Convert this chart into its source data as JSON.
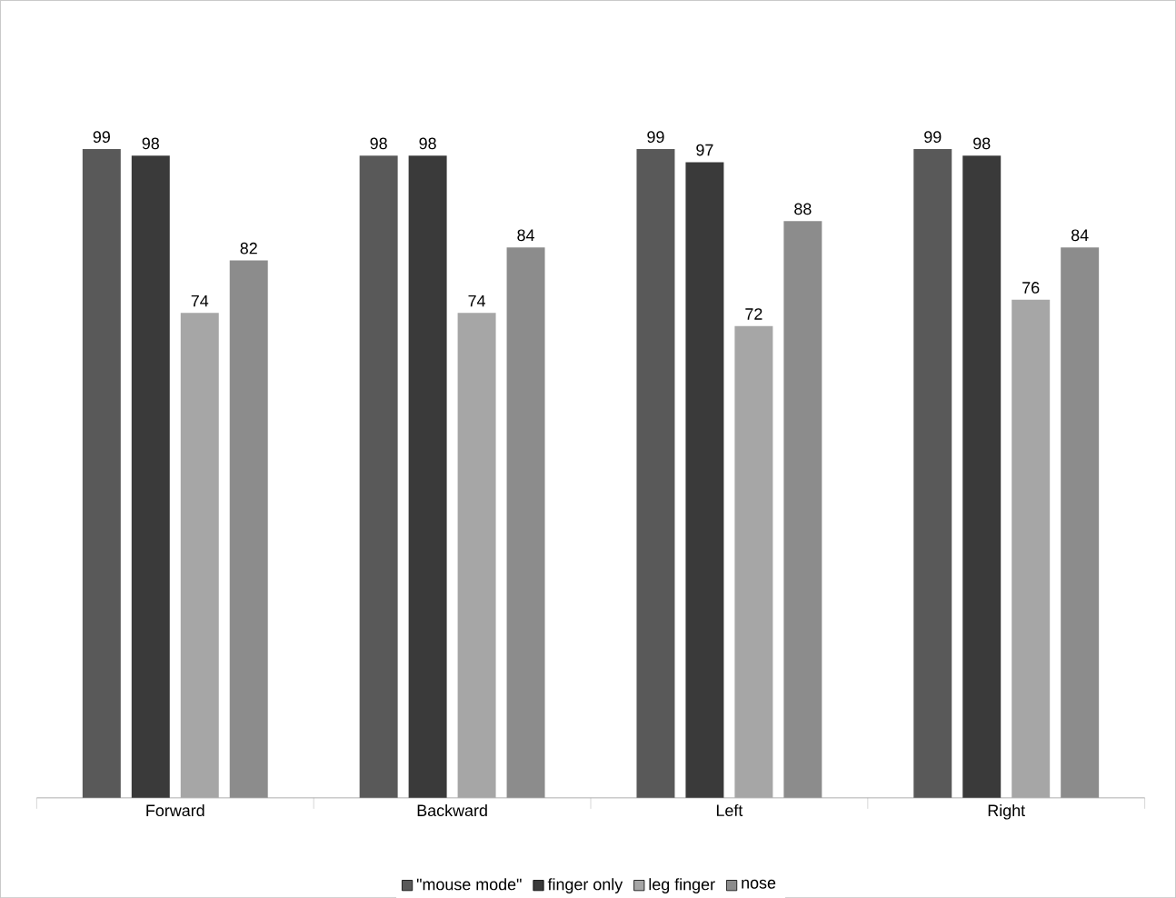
{
  "chart_data": {
    "type": "bar",
    "categories": [
      "Forward",
      "Backward",
      "Left",
      "Right"
    ],
    "series": [
      {
        "name": "\"mouse mode\"",
        "color": "#595959",
        "values": [
          99,
          98,
          99,
          99
        ]
      },
      {
        "name": "finger only",
        "color": "#3a3a3a",
        "values": [
          98,
          98,
          97,
          98
        ]
      },
      {
        "name": "leg finger",
        "color": "#a6a6a6",
        "values": [
          74,
          74,
          72,
          76
        ]
      },
      {
        "name": "nose",
        "color": "#8c8c8c",
        "values": [
          82,
          84,
          88,
          84
        ]
      }
    ],
    "data_labels": true,
    "legend": "bottom"
  }
}
